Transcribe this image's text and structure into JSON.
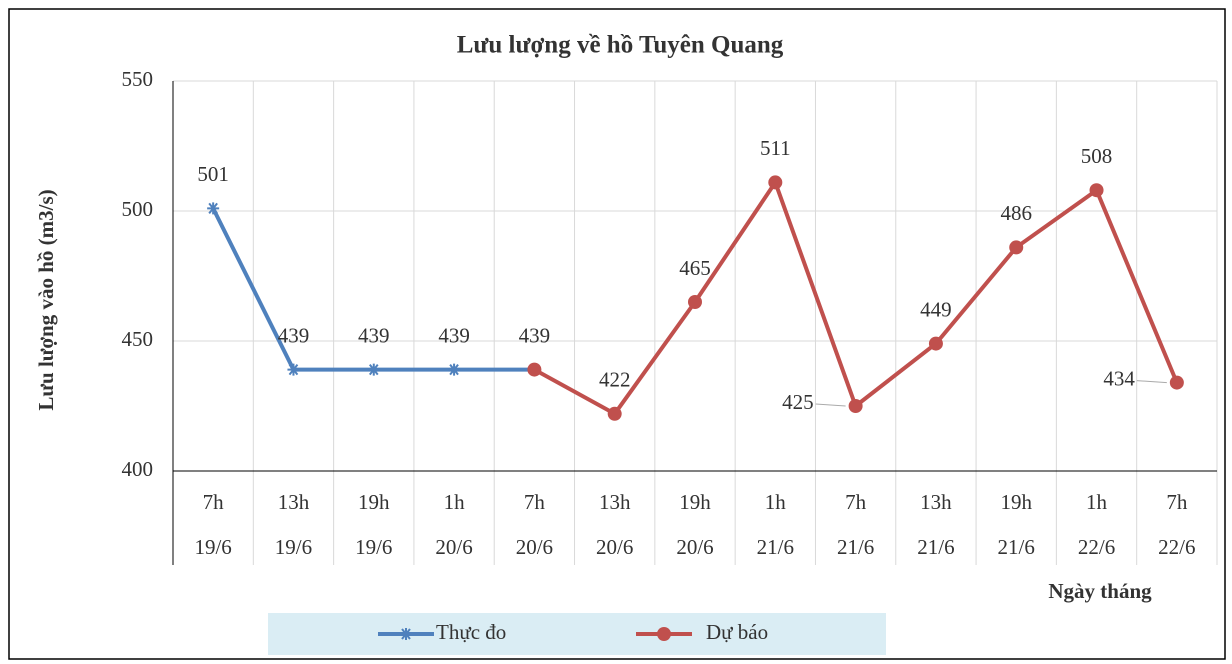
{
  "chart_data": {
    "type": "line",
    "title": "Lưu lượng về hồ Tuyên Quang",
    "xlabel": "Ngày tháng",
    "ylabel": "Lưu lượng vào hồ (m3/s)",
    "categories": [
      [
        "7h",
        "19/6"
      ],
      [
        "13h",
        "19/6"
      ],
      [
        "19h",
        "19/6"
      ],
      [
        "1h",
        "20/6"
      ],
      [
        "7h",
        "20/6"
      ],
      [
        "13h",
        "20/6"
      ],
      [
        "19h",
        "20/6"
      ],
      [
        "1h",
        "21/6"
      ],
      [
        "7h",
        "21/6"
      ],
      [
        "13h",
        "21/6"
      ],
      [
        "19h",
        "21/6"
      ],
      [
        "1h",
        "22/6"
      ],
      [
        "7h",
        "22/6"
      ]
    ],
    "series": [
      {
        "name": "Thực đo",
        "color": "#4f81bd",
        "marker": "star",
        "values": [
          501,
          439,
          439,
          439,
          439,
          null,
          null,
          null,
          null,
          null,
          null,
          null,
          null
        ]
      },
      {
        "name": "Dự báo",
        "color": "#c0504d",
        "marker": "circle",
        "values": [
          null,
          null,
          null,
          null,
          439,
          422,
          465,
          511,
          425,
          449,
          486,
          508,
          434
        ]
      }
    ],
    "ylim": [
      400,
      550
    ],
    "yticks": [
      400,
      450,
      500,
      550
    ],
    "grid": true,
    "legend": "bottom"
  }
}
